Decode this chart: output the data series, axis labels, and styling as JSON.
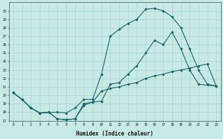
{
  "xlabel": "Humidex (Indice chaleur)",
  "ylabel": "",
  "bg_color": "#c8eae6",
  "line_color": "#1a6060",
  "grid_color": "#a8d4d0",
  "xlim": [
    -0.5,
    23.5
  ],
  "ylim": [
    17,
    31
  ],
  "xticks": [
    0,
    1,
    2,
    3,
    4,
    5,
    6,
    7,
    8,
    9,
    10,
    11,
    12,
    13,
    14,
    15,
    16,
    17,
    18,
    19,
    20,
    21,
    22,
    23
  ],
  "yticks": [
    17,
    18,
    19,
    20,
    21,
    22,
    23,
    24,
    25,
    26,
    27,
    28,
    29,
    30
  ],
  "series1_x": [
    0,
    1,
    2,
    3,
    4,
    5,
    6,
    7,
    8,
    9,
    10,
    11,
    12,
    13,
    14,
    15,
    16,
    17,
    18,
    19,
    20,
    21,
    22,
    23
  ],
  "series1_y": [
    20.3,
    19.5,
    18.5,
    17.9,
    18.0,
    17.2,
    17.1,
    17.2,
    19.0,
    19.2,
    19.3,
    21.3,
    21.5,
    22.5,
    23.5,
    25.0,
    26.5,
    26.0,
    27.5,
    25.5,
    23.0,
    21.3,
    21.2,
    21.1
  ],
  "series2_x": [
    0,
    1,
    2,
    3,
    5,
    6,
    7,
    8,
    9,
    10,
    11,
    12,
    13,
    14,
    15,
    16,
    17,
    18,
    19,
    20,
    21,
    22,
    23
  ],
  "series2_y": [
    20.3,
    19.5,
    18.5,
    17.9,
    18.0,
    17.9,
    18.5,
    19.5,
    19.5,
    22.5,
    27.0,
    27.8,
    28.5,
    29.0,
    30.2,
    30.3,
    30.0,
    29.3,
    28.0,
    25.5,
    23.0,
    21.3,
    21.1
  ],
  "series3_x": [
    0,
    1,
    2,
    3,
    4,
    5,
    6,
    7,
    8,
    9,
    10,
    11,
    12,
    13,
    14,
    15,
    16,
    17,
    18,
    19,
    20,
    21,
    22,
    23
  ],
  "series3_y": [
    20.3,
    19.5,
    18.5,
    17.9,
    18.0,
    17.2,
    17.1,
    17.2,
    18.8,
    19.2,
    20.5,
    20.8,
    21.0,
    21.3,
    21.5,
    22.0,
    22.3,
    22.5,
    22.8,
    23.0,
    23.2,
    23.5,
    23.7,
    21.1
  ]
}
